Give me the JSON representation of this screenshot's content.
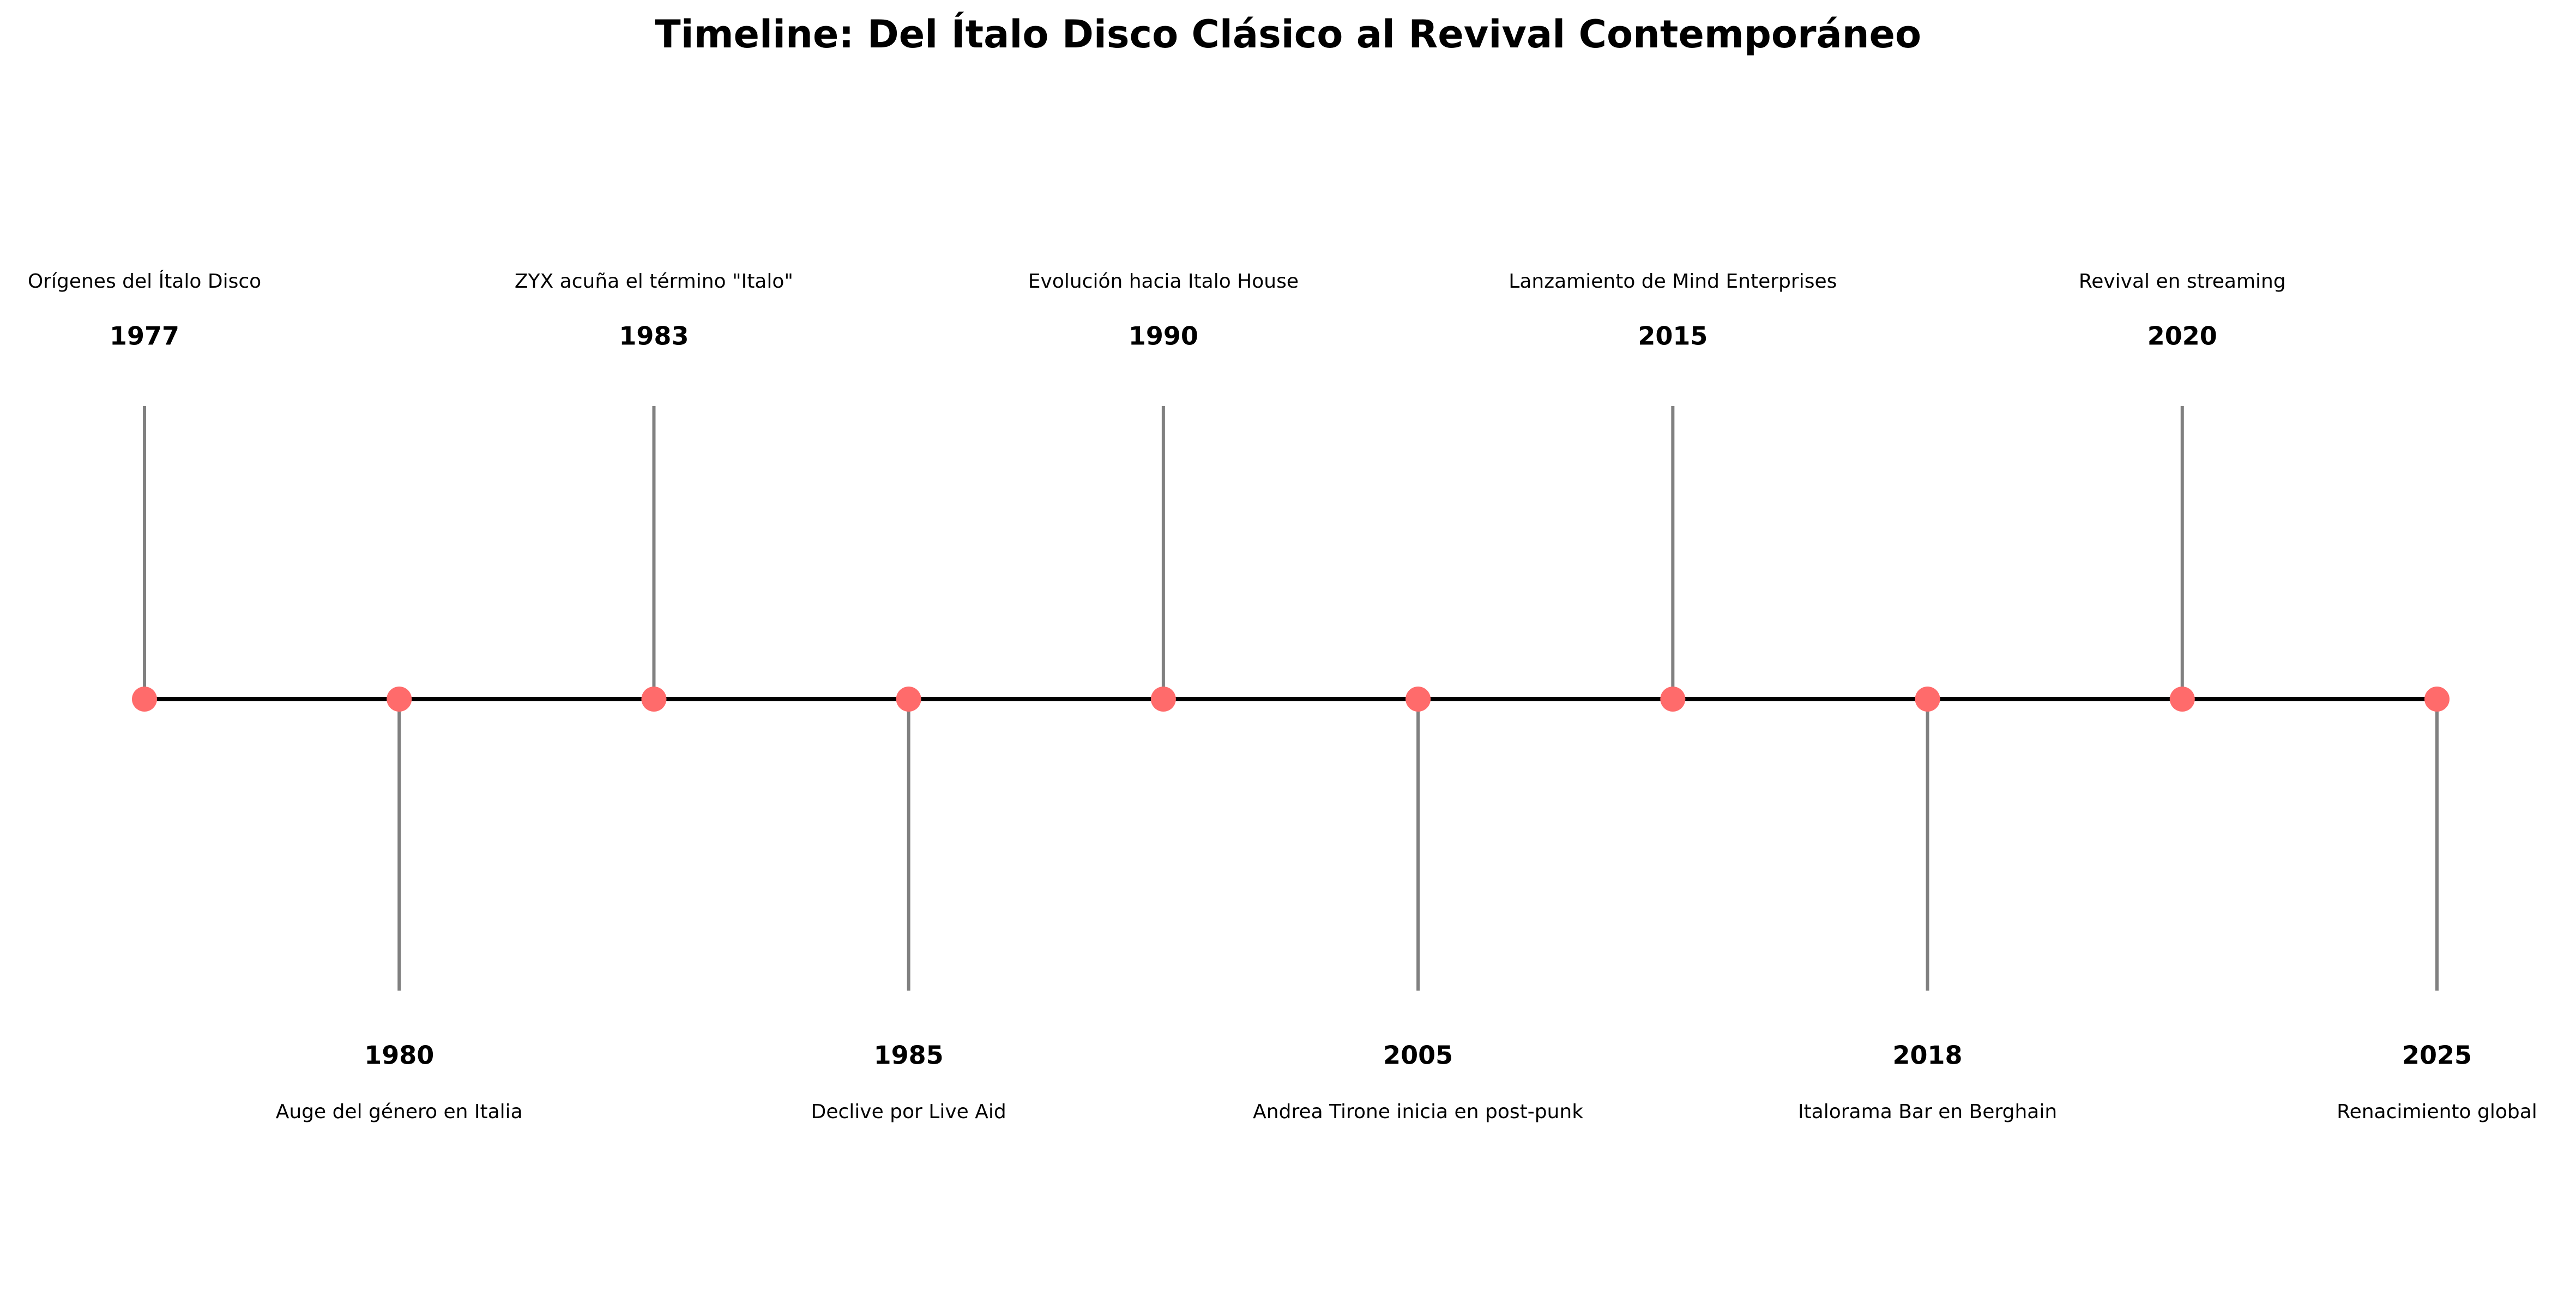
{
  "title": "Timeline: Del Ítalo Disco Clásico al Revival Contemporáneo",
  "colors": {
    "axis": "#000000",
    "stem": "#808080",
    "marker": "#ff6b6b",
    "text": "#000000"
  },
  "timeline": {
    "events": [
      {
        "year": "1977",
        "label": "Orígenes del Ítalo Disco",
        "side": "above"
      },
      {
        "year": "1980",
        "label": "Auge del género en Italia",
        "side": "below"
      },
      {
        "year": "1983",
        "label": "ZYX acuña el término \"Italo\"",
        "side": "above"
      },
      {
        "year": "1985",
        "label": "Declive por Live Aid",
        "side": "below"
      },
      {
        "year": "1990",
        "label": "Evolución hacia Italo House",
        "side": "above"
      },
      {
        "year": "2005",
        "label": "Andrea Tirone inicia en post-punk",
        "side": "below"
      },
      {
        "year": "2015",
        "label": "Lanzamiento de Mind Enterprises",
        "side": "above"
      },
      {
        "year": "2018",
        "label": "Italorama Bar en Berghain",
        "side": "below"
      },
      {
        "year": "2020",
        "label": "Revival en streaming",
        "side": "above"
      },
      {
        "year": "2025",
        "label": "Renacimiento global",
        "side": "below"
      }
    ]
  }
}
